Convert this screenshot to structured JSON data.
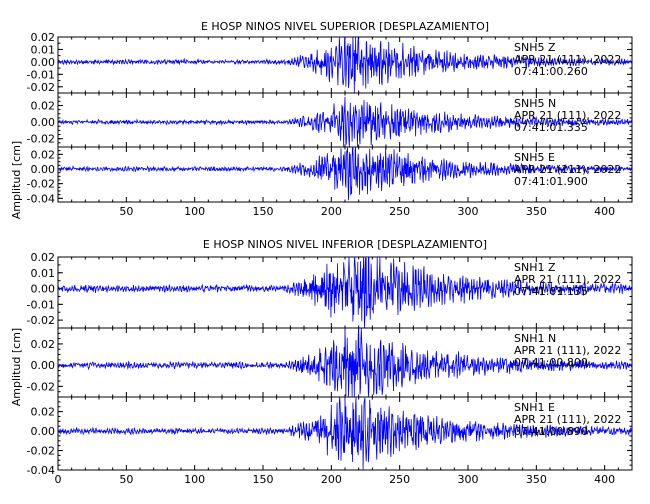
{
  "chart_data": [
    {
      "type": "line",
      "title": "E HOSP NINOS NIVEL SUPERIOR [DESPLAZAMIENTO]",
      "ylabel": "Amplitud [cm]",
      "xlim": [
        0,
        420
      ],
      "xticks": [
        50,
        100,
        150,
        200,
        250,
        300,
        350,
        400
      ],
      "grid": false,
      "series": [
        {
          "name": "SNH5 Z",
          "color": "#0000ff",
          "ylim": [
            -0.025,
            0.02
          ],
          "yticks": [
            "0.02",
            "0.01",
            "0.00",
            "-0.01",
            "-0.02"
          ],
          "station": "SNH5",
          "component": "Z",
          "date": "APR 21 (111), 2022",
          "time": "07:41:00.260",
          "peak": 0.018,
          "seed": 11
        },
        {
          "name": "SNH5 N",
          "color": "#0000ff",
          "ylim": [
            -0.03,
            0.035
          ],
          "yticks": [
            "0.02",
            "0.00",
            "-0.02"
          ],
          "station": "SNH5",
          "component": "N",
          "date": "APR 21 (111), 2022",
          "time": "07:41:01.335",
          "peak": 0.024,
          "seed": 23
        },
        {
          "name": "SNH5 E",
          "color": "#0000ff",
          "ylim": [
            -0.045,
            0.03
          ],
          "yticks": [
            "0.02",
            "0.00",
            "-0.02",
            "-0.04"
          ],
          "station": "SNH5",
          "component": "E",
          "date": "APR 21 (111), 2022",
          "time": "07:41:01.900",
          "peak": 0.03,
          "seed": 37
        }
      ]
    },
    {
      "type": "line",
      "title": "E HOSP NINOS NIVEL INFERIOR [DESPLAZAMIENTO]",
      "ylabel": "Amplitud [cm]",
      "xlim": [
        0,
        420
      ],
      "xticks": [
        0,
        50,
        100,
        150,
        200,
        250,
        300,
        350,
        400
      ],
      "grid": false,
      "series": [
        {
          "name": "SNH1 Z",
          "color": "#0000ff",
          "ylim": [
            -0.025,
            0.02
          ],
          "yticks": [
            "0.02",
            "0.01",
            "0.00",
            "-0.01",
            "-0.02"
          ],
          "station": "SNH1",
          "component": "Z",
          "date": "APR 21 (111), 2022",
          "time": "07:41:01.135",
          "peak": 0.022,
          "seed": 51
        },
        {
          "name": "SNH1 N",
          "color": "#0000ff",
          "ylim": [
            -0.03,
            0.035
          ],
          "yticks": [
            "0.02",
            "0.00",
            "-0.02"
          ],
          "station": "SNH1",
          "component": "N",
          "date": "APR 21 (111), 2022",
          "time": "07:41:00.800",
          "peak": 0.028,
          "seed": 67
        },
        {
          "name": "SNH1 E",
          "color": "#0000ff",
          "ylim": [
            -0.04,
            0.035
          ],
          "yticks": [
            "0.02",
            "0.00",
            "-0.02",
            "-0.04"
          ],
          "station": "SNH1",
          "component": "E",
          "date": "APR 21 (111), 2022",
          "time": "07:41:00.890",
          "peak": 0.03,
          "seed": 79
        }
      ]
    }
  ]
}
